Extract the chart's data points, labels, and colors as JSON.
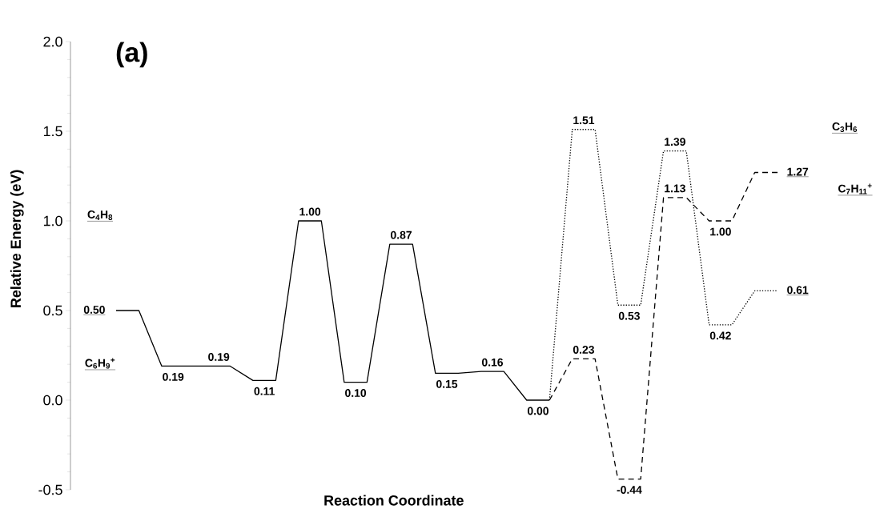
{
  "chart_data": {
    "type": "line",
    "title": "(a)",
    "xlabel": "Reaction Coordinate",
    "ylabel": "Relative Energy (eV)",
    "categories": [
      null,
      null,
      null,
      null,
      null,
      null,
      null,
      null,
      null,
      null,
      null,
      null,
      null,
      null,
      null,
      null,
      null,
      null,
      null,
      null,
      null,
      null,
      null,
      null,
      null,
      null,
      null,
      null,
      null,
      null
    ],
    "series": [
      {
        "color": "#000000",
        "line_style": "solid",
        "values": [
          0.5,
          0.5,
          0.19,
          0.19,
          0.19,
          0.19,
          0.11,
          0.11,
          1.0,
          1.0,
          0.1,
          0.1,
          0.87,
          0.87,
          0.15,
          0.15,
          0.16,
          0.16,
          0.0,
          0.0,
          null,
          null,
          null,
          null,
          null,
          null,
          null,
          null,
          null,
          null
        ],
        "value_labels": [
          "0.50",
          null,
          "0.19",
          null,
          "0.19",
          null,
          "0.11",
          null,
          "1.00",
          null,
          "0.10",
          null,
          "0.87",
          null,
          "0.15",
          null,
          "0.16",
          null,
          "0.00",
          null,
          null,
          null,
          null,
          null,
          null,
          null,
          null,
          null,
          null,
          null
        ]
      },
      {
        "color": "#000000",
        "line_style": "dashed",
        "values": [
          null,
          null,
          null,
          null,
          null,
          null,
          null,
          null,
          null,
          null,
          null,
          null,
          null,
          null,
          null,
          null,
          null,
          null,
          null,
          0.0,
          0.23,
          0.23,
          -0.44,
          -0.44,
          1.13,
          1.13,
          1.0,
          1.0,
          1.27,
          1.27
        ],
        "value_labels": [
          null,
          null,
          null,
          null,
          null,
          null,
          null,
          null,
          null,
          null,
          null,
          null,
          null,
          null,
          null,
          null,
          null,
          null,
          null,
          null,
          "0.23",
          null,
          "-0.44",
          null,
          "1.13",
          null,
          "1.00",
          null,
          null,
          "1.27"
        ]
      },
      {
        "color": "#000000",
        "line_style": "dotted",
        "values": [
          null,
          null,
          null,
          null,
          null,
          null,
          null,
          null,
          null,
          null,
          null,
          null,
          null,
          null,
          null,
          null,
          null,
          null,
          null,
          0.0,
          1.51,
          1.51,
          0.53,
          0.53,
          1.39,
          1.39,
          0.42,
          0.42,
          0.61,
          0.61
        ],
        "value_labels": [
          null,
          null,
          null,
          null,
          null,
          null,
          null,
          null,
          null,
          null,
          null,
          null,
          null,
          null,
          null,
          null,
          null,
          null,
          null,
          null,
          "1.51",
          null,
          "0.53",
          null,
          "1.39",
          null,
          "0.42",
          null,
          null,
          "0.61"
        ]
      }
    ],
    "ylim": [
      -0.5,
      2.0
    ],
    "yticks": [
      {
        "value": -0.5,
        "label": "-0.5"
      },
      {
        "value": 0,
        "label": "0.0"
      },
      {
        "value": 0.5,
        "label": "0.5"
      },
      {
        "value": 1,
        "label": "1.0"
      },
      {
        "value": 1.5,
        "label": "1.5"
      },
      {
        "value": 2,
        "label": "2.0"
      }
    ],
    "tick_labels": "y",
    "annotations": [
      "C$_{4}$H$_{8}$",
      "C$_{6}$H$_{9}$$^{+}$",
      "C$_{3}$H$_{6}$",
      "C$_{7}$H$_{11}$$^{+}$"
    ]
  }
}
